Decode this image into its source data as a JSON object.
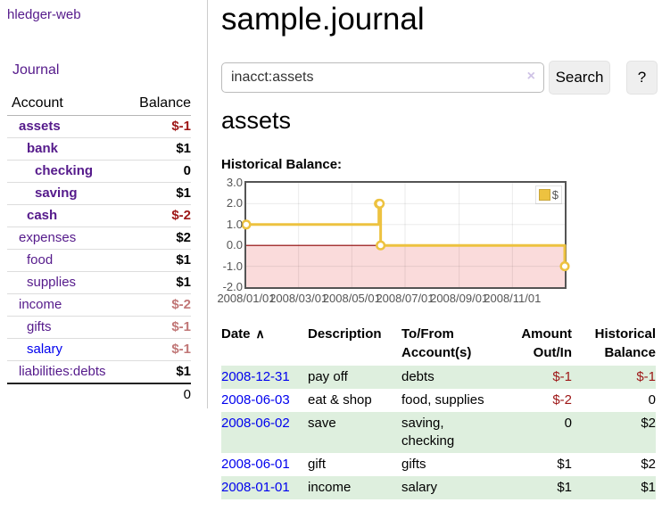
{
  "app": {
    "brand": "hledger-web",
    "nav_journal": "Journal"
  },
  "colors": {
    "link_visited": "#551a8b",
    "link": "#0000ee",
    "negative_strong": "#9d1616",
    "negative_dim": "#c17777",
    "row_highlight": "#deefde",
    "chart_line": "#edc240",
    "chart_negative_fill": "#fadbdb",
    "chart_zero_line": "#8b0000"
  },
  "sidebar": {
    "header": {
      "account": "Account",
      "balance": "Balance"
    },
    "accounts": [
      {
        "name": "assets",
        "balance": "$-1",
        "indent": 1,
        "bold": true,
        "neg": "strong"
      },
      {
        "name": "bank",
        "balance": "$1",
        "indent": 2,
        "bold": true,
        "neg": null
      },
      {
        "name": "checking",
        "balance": "0",
        "indent": 3,
        "bold": true,
        "neg": null
      },
      {
        "name": "saving",
        "balance": "$1",
        "indent": 3,
        "bold": true,
        "neg": null
      },
      {
        "name": "cash",
        "balance": "$-2",
        "indent": 2,
        "bold": true,
        "neg": "strong"
      },
      {
        "name": "expenses",
        "balance": "$2",
        "indent": 1,
        "bold": false,
        "neg": null
      },
      {
        "name": "food",
        "balance": "$1",
        "indent": 2,
        "bold": false,
        "neg": null
      },
      {
        "name": "supplies",
        "balance": "$1",
        "indent": 2,
        "bold": false,
        "neg": null
      },
      {
        "name": "income",
        "balance": "$-2",
        "indent": 1,
        "bold": false,
        "neg": "dim"
      },
      {
        "name": "gifts",
        "balance": "$-1",
        "indent": 2,
        "bold": false,
        "neg": "dim"
      },
      {
        "name": "salary",
        "balance": "$-1",
        "indent": 2,
        "bold": false,
        "neg": "dim",
        "link_style": "unvisited"
      },
      {
        "name": "liabilities:debts",
        "balance": "$1",
        "indent": 1,
        "bold": false,
        "neg": null
      }
    ],
    "total": "0"
  },
  "header": {
    "title": "sample.journal"
  },
  "search": {
    "value": "inacct:assets",
    "clear_icon": "×",
    "button": "Search",
    "help_button": "?"
  },
  "account_page": {
    "heading": "assets",
    "chart_label": "Historical Balance:"
  },
  "chart_data": {
    "type": "line",
    "step": true,
    "series": [
      {
        "name": "$",
        "points": [
          [
            "2008-01-01",
            1
          ],
          [
            "2008-06-01",
            2
          ],
          [
            "2008-06-02",
            2
          ],
          [
            "2008-06-03",
            0
          ],
          [
            "2008-12-31",
            -1
          ]
        ]
      }
    ],
    "x_range": [
      "2008-01-01",
      "2008-12-31"
    ],
    "x_ticks": [
      "2008/01/01",
      "2008/03/01",
      "2008/05/01",
      "2008/07/01",
      "2008/09/01",
      "2008/11/01"
    ],
    "y_ticks": [
      "3.0",
      "2.0",
      "1.0",
      "0.0",
      "-1.0",
      "-2.0"
    ],
    "ylim": [
      -2,
      3
    ],
    "grid": true,
    "legend": {
      "label": "$",
      "position": "top-right"
    }
  },
  "register": {
    "columns": [
      "Date",
      "Description",
      "To/From Account(s)",
      "Amount Out/In",
      "Historical Balance"
    ],
    "sort_glyph": "∧",
    "rows": [
      {
        "date": "2008-12-31",
        "description": "pay off",
        "accounts": "debts",
        "amount": "$-1",
        "balance": "$-1"
      },
      {
        "date": "2008-06-03",
        "description": "eat & shop",
        "accounts": "food, supplies",
        "amount": "$-2",
        "balance": "0"
      },
      {
        "date": "2008-06-02",
        "description": "save",
        "accounts": "saving, checking",
        "amount": "0",
        "balance": "$2"
      },
      {
        "date": "2008-06-01",
        "description": "gift",
        "accounts": "gifts",
        "amount": "$1",
        "balance": "$2"
      },
      {
        "date": "2008-01-01",
        "description": "income",
        "accounts": "salary",
        "amount": "$1",
        "balance": "$1"
      }
    ]
  }
}
